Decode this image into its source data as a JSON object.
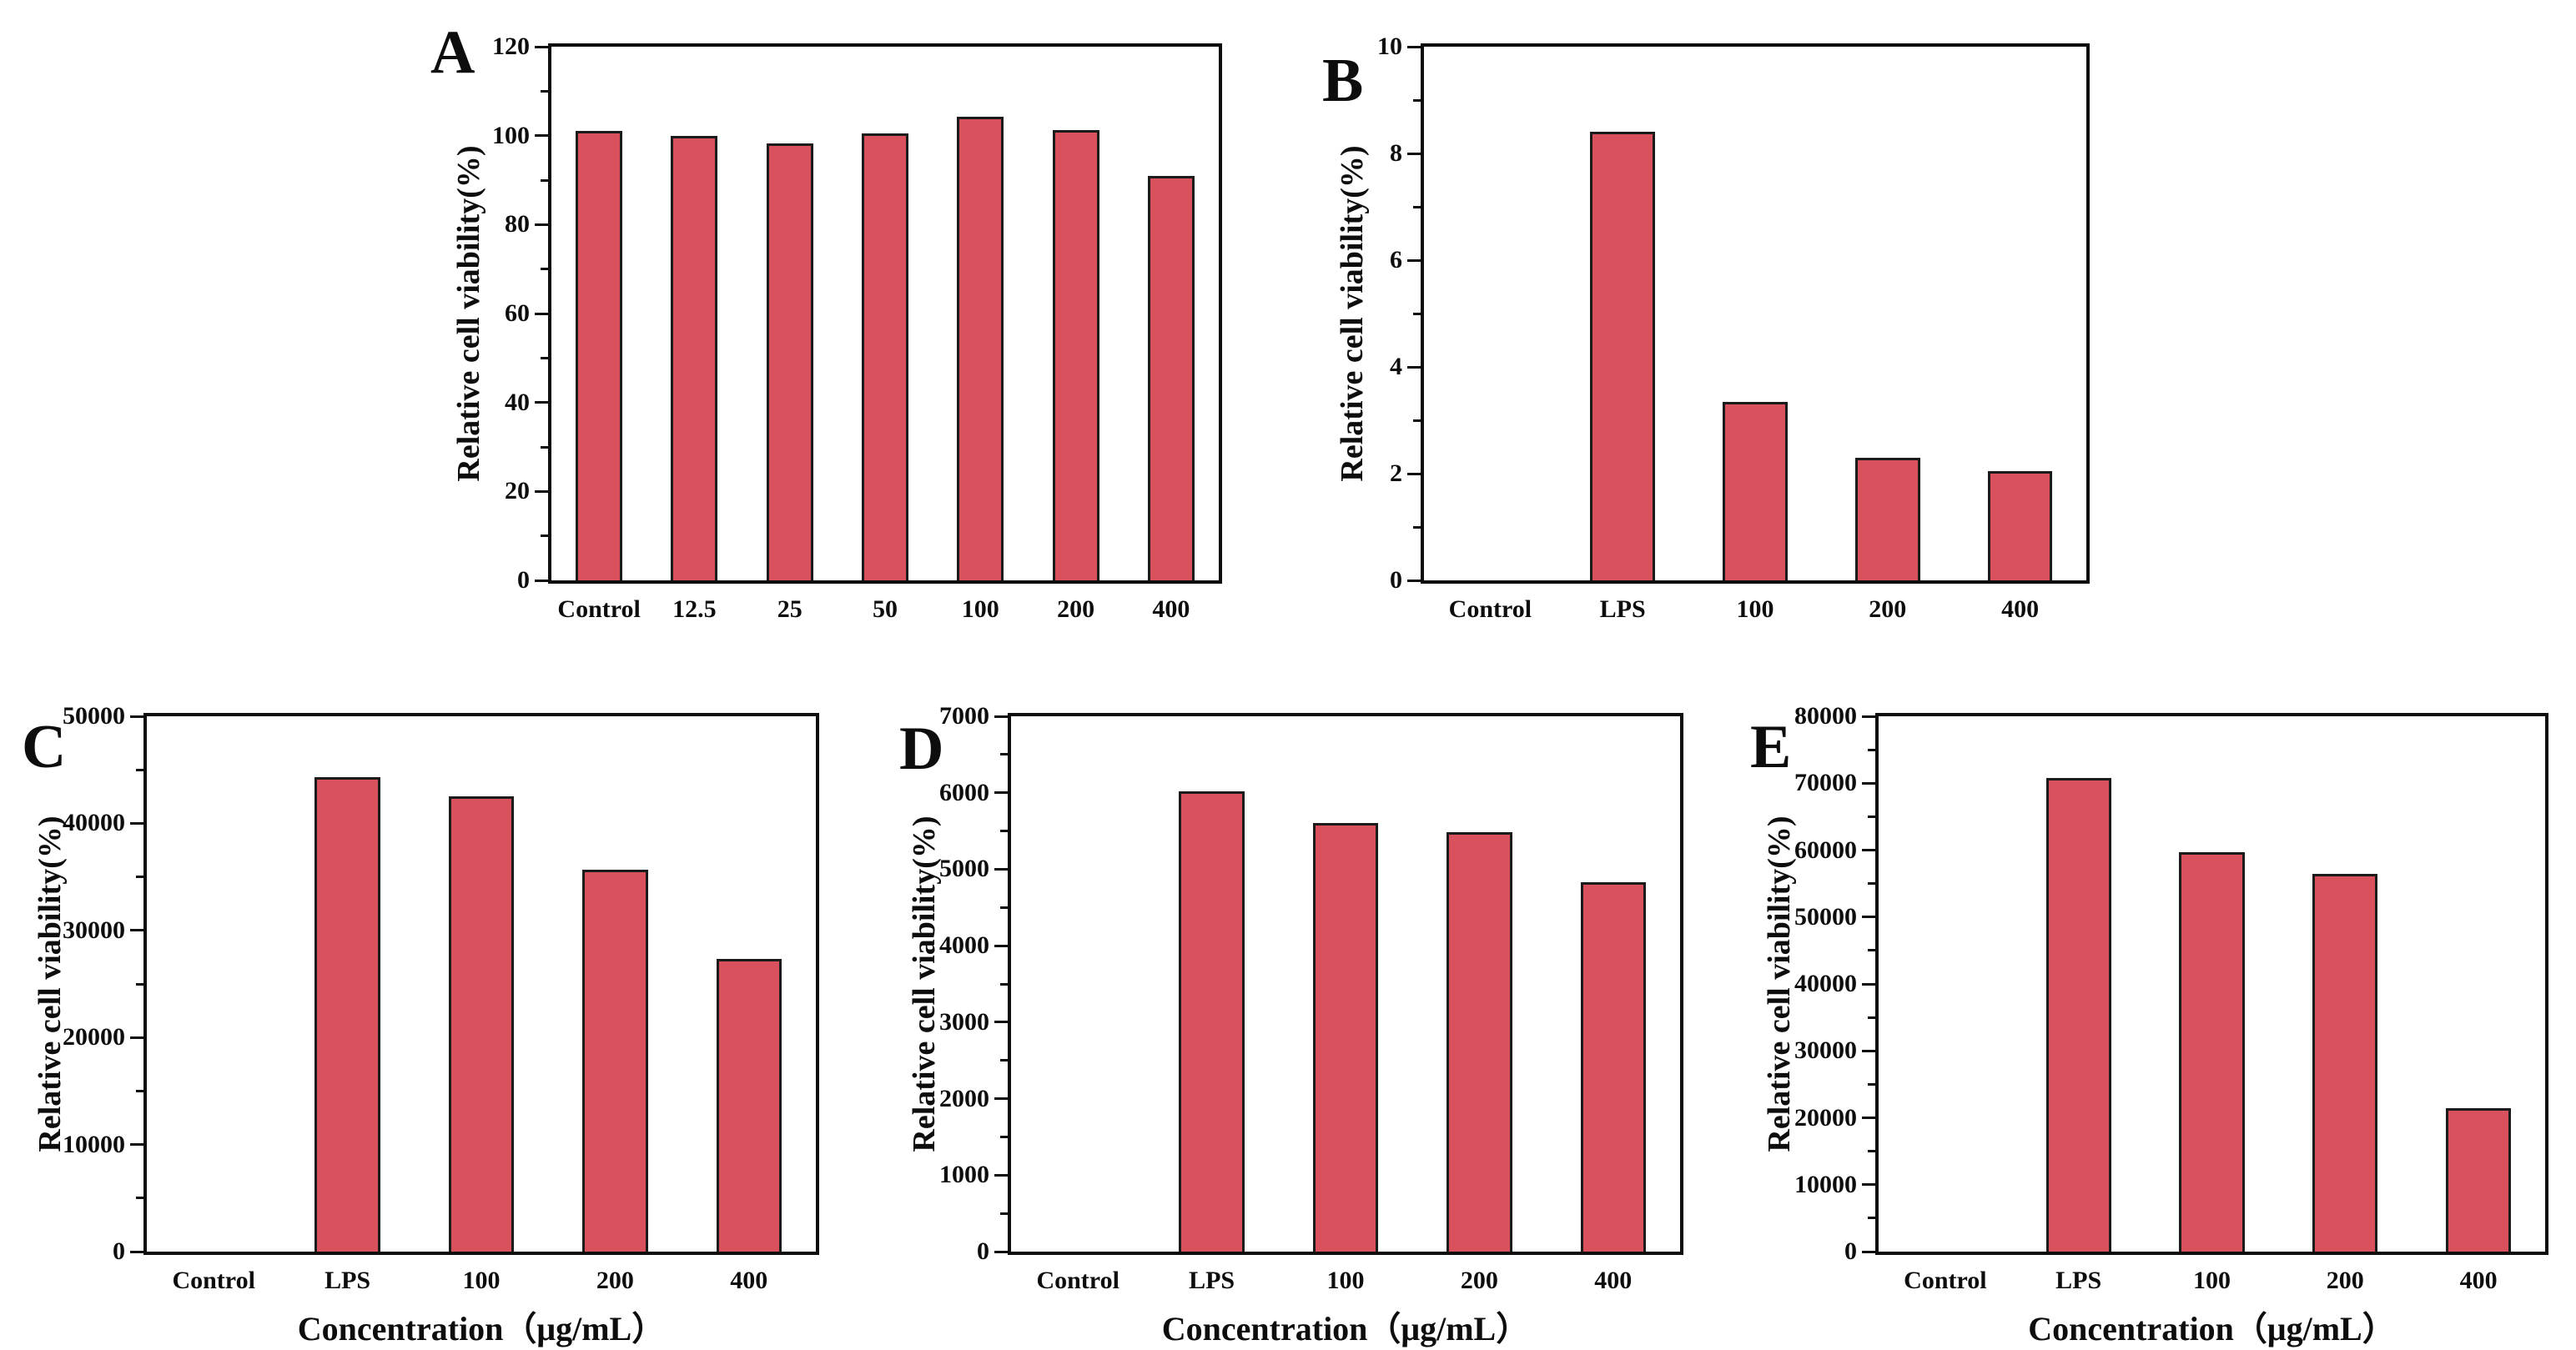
{
  "page": {
    "background": "#ffffff"
  },
  "colors": {
    "bar_fill": "#D8515C",
    "bar_border": "#1b1b1b",
    "axis": "#0d0d0d",
    "text": "#0d0d0d"
  },
  "chart_data": [
    {
      "panel": "A",
      "type": "bar",
      "ylabel": "Relative cell viability(%)",
      "xlabel": "",
      "categories": [
        "Control",
        "12.5",
        "25",
        "50",
        "100",
        "200",
        "400"
      ],
      "values": [
        101,
        100,
        98.3,
        100.5,
        104.3,
        101.3,
        91
      ],
      "ylim": [
        0,
        120
      ],
      "ytick_step": 20,
      "minor_ticks": true,
      "grid": false,
      "frame": "box",
      "legend": "none"
    },
    {
      "panel": "B",
      "type": "bar",
      "ylabel": "Relative cell viability(%)",
      "xlabel": "",
      "categories": [
        "Control",
        "LPS",
        "100",
        "200",
        "400"
      ],
      "values": [
        0,
        8.4,
        3.35,
        2.3,
        2.05
      ],
      "ylim": [
        0,
        10
      ],
      "ytick_step": 2,
      "minor_ticks": true,
      "grid": false,
      "frame": "box",
      "legend": "none"
    },
    {
      "panel": "C",
      "type": "bar",
      "ylabel": "Relative cell viability(%)",
      "xlabel": "Concentration（μg/mL）",
      "categories": [
        "Control",
        "LPS",
        "100",
        "200",
        "400"
      ],
      "values": [
        0,
        44300,
        42500,
        35700,
        27300
      ],
      "ylim": [
        0,
        50000
      ],
      "ytick_step": 10000,
      "minor_ticks": true,
      "grid": false,
      "frame": "box",
      "legend": "none"
    },
    {
      "panel": "D",
      "type": "bar",
      "ylabel": "Relative cell viability(%)",
      "xlabel": "Concentration（μg/mL）",
      "categories": [
        "Control",
        "LPS",
        "100",
        "200",
        "400"
      ],
      "values": [
        0,
        6020,
        5600,
        5480,
        4830
      ],
      "ylim": [
        0,
        7000
      ],
      "ytick_step": 1000,
      "minor_ticks": true,
      "grid": false,
      "frame": "box",
      "legend": "none"
    },
    {
      "panel": "E",
      "type": "bar",
      "ylabel": "Relative cell viability(%)",
      "xlabel": "Concentration（μg/mL）",
      "categories": [
        "Control",
        "LPS",
        "100",
        "200",
        "400"
      ],
      "values": [
        0,
        70800,
        59700,
        56400,
        21400
      ],
      "ylim": [
        0,
        80000
      ],
      "ytick_step": 10000,
      "minor_ticks": true,
      "grid": false,
      "frame": "box",
      "legend": "none"
    }
  ]
}
